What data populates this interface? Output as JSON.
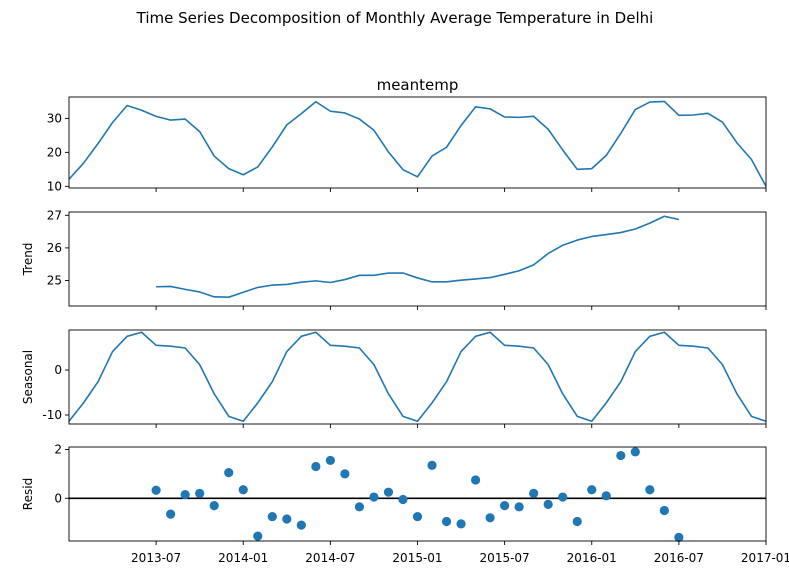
{
  "figure": {
    "suptitle": "Time Series Decomposition of Monthly Average Temperature in Delhi",
    "x_ticks": [
      "2013-07",
      "2014-01",
      "2014-07",
      "2015-01",
      "2015-07",
      "2016-01",
      "2016-07",
      "2017-01"
    ]
  },
  "colors": {
    "line": "#1f77b4",
    "marker": "#1f77b4",
    "zero_line": "#000000"
  },
  "chart_data": [
    {
      "type": "line",
      "title": "meantemp",
      "ylabel": "",
      "x_start": "2013-01",
      "x_end": "2017-01",
      "ylim": [
        9.5,
        36.3
      ],
      "yticks": [
        10,
        20,
        30
      ],
      "series": [
        {
          "values": [
            12.1,
            16.8,
            22.6,
            28.8,
            33.8,
            32.4,
            30.6,
            29.5,
            29.8,
            26.1,
            18.9,
            15.2,
            13.4,
            15.7,
            21.6,
            28.1,
            31.4,
            34.9,
            32.1,
            31.6,
            29.8,
            26.5,
            20.1,
            14.9,
            12.8,
            18.9,
            21.5,
            27.9,
            33.4,
            32.8,
            30.4,
            30.3,
            30.6,
            26.8,
            20.7,
            15.0,
            15.2,
            19.1,
            25.6,
            32.6,
            34.8,
            35.0,
            30.9,
            31.0,
            31.5,
            28.9,
            22.8,
            17.9,
            10.0
          ]
        }
      ]
    },
    {
      "type": "line",
      "title": "",
      "ylabel": "Trend",
      "x_start": "2013-01",
      "x_end": "2017-01",
      "ylim": [
        24.22,
        27.1
      ],
      "yticks": [
        25,
        26,
        27
      ],
      "series": [
        {
          "values": [
            null,
            null,
            null,
            null,
            null,
            null,
            24.81,
            24.82,
            24.73,
            24.65,
            24.5,
            24.49,
            24.64,
            24.79,
            24.86,
            24.88,
            24.95,
            24.99,
            24.94,
            25.03,
            25.16,
            25.16,
            25.23,
            25.23,
            25.08,
            24.96,
            24.96,
            25.01,
            25.05,
            25.09,
            25.19,
            25.3,
            25.48,
            25.83,
            26.08,
            26.24,
            26.35,
            26.41,
            26.47,
            26.58,
            26.76,
            26.97,
            26.87,
            null,
            null,
            null,
            null,
            null,
            null
          ]
        }
      ]
    },
    {
      "type": "line",
      "title": "",
      "ylabel": "Seasonal",
      "x_start": "2013-01",
      "x_end": "2017-01",
      "ylim": [
        -12.0,
        8.9
      ],
      "yticks": [
        -10,
        0
      ],
      "series": [
        {
          "values": [
            -11.4,
            -7.3,
            -2.6,
            4.1,
            7.5,
            8.4,
            5.5,
            5.3,
            4.9,
            1.2,
            -5.3,
            -10.3,
            -11.4,
            -7.3,
            -2.6,
            4.1,
            7.5,
            8.4,
            5.5,
            5.3,
            4.9,
            1.2,
            -5.3,
            -10.3,
            -11.4,
            -7.3,
            -2.6,
            4.1,
            7.5,
            8.4,
            5.5,
            5.3,
            4.9,
            1.2,
            -5.3,
            -10.3,
            -11.4,
            -7.3,
            -2.6,
            4.1,
            7.5,
            8.4,
            5.5,
            5.3,
            4.9,
            1.2,
            -5.3,
            -10.3,
            -11.4
          ]
        }
      ]
    },
    {
      "type": "scatter",
      "title": "",
      "ylabel": "Resid",
      "x_start": "2013-01",
      "x_end": "2017-01",
      "ylim": [
        -1.75,
        2.1
      ],
      "yticks": [
        0,
        2
      ],
      "zero_line": true,
      "series": [
        {
          "values": [
            null,
            null,
            null,
            null,
            null,
            null,
            0.33,
            -0.65,
            0.15,
            0.2,
            -0.3,
            1.05,
            0.35,
            -1.55,
            -0.75,
            -0.85,
            -1.1,
            1.3,
            1.55,
            1.0,
            -0.35,
            0.05,
            0.25,
            -0.05,
            -0.75,
            1.35,
            -0.95,
            -1.05,
            0.75,
            -0.8,
            -0.3,
            -0.35,
            0.2,
            -0.25,
            0.05,
            -0.95,
            0.35,
            0.1,
            1.75,
            1.9,
            0.35,
            -0.5,
            -1.6,
            null,
            null,
            null,
            null,
            null,
            null
          ]
        }
      ]
    }
  ]
}
